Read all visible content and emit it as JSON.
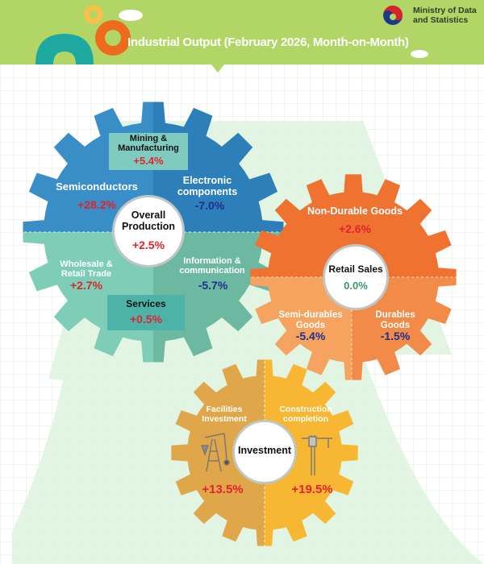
{
  "header": {
    "title": "Industrial Output (February 2026, Month-on-Month)",
    "ministry_line1": "Ministry of Data",
    "ministry_line2": "and Statistics",
    "background_color": "#b2d665"
  },
  "production": {
    "hub_title_1": "Overall",
    "hub_title_2": "Production",
    "hub_value": "+2.5%",
    "mining": {
      "label_1": "Mining &",
      "label_2": "Manufacturing",
      "value": "+5.4%"
    },
    "semiconductors": {
      "label": "Semiconductors",
      "value": "+28.2%"
    },
    "electronic": {
      "label_1": "Electronic",
      "label_2": "components",
      "value": "-7.0%"
    },
    "wholesale": {
      "label_1": "Wholesale &",
      "label_2": "Retail Trade",
      "value": "+2.7%"
    },
    "information": {
      "label_1": "Information &",
      "label_2": "communication",
      "value": "-5.7%"
    },
    "services": {
      "label": "Services",
      "value": "+0.5%"
    },
    "colors": {
      "blue_left": "#3a8ec7",
      "blue_right": "#2c7fb8",
      "teal_left": "#7ecdb7",
      "teal_right": "#6db8a0"
    }
  },
  "retail": {
    "hub_title": "Retail Sales",
    "hub_value": "0.0%",
    "non_durable": {
      "label": "Non-Durable Goods",
      "value": "+2.6%"
    },
    "semi_durable": {
      "label_1": "Semi-durables",
      "label_2": "Goods",
      "value": "-5.4%"
    },
    "durable": {
      "label_1": "Durables",
      "label_2": "Goods",
      "value": "-1.5%"
    },
    "colors": {
      "top": "#ef7230",
      "bottom_left": "#f5a35f",
      "bottom_right": "#f28a48"
    }
  },
  "investment": {
    "hub_title": "Investment",
    "facilities": {
      "label_1": "Facilities",
      "label_2": "Investment",
      "value": "+13.5%",
      "icon": "oil-pump-icon"
    },
    "construction": {
      "label_1": "Construction",
      "label_2": "completion",
      "value": "+19.5%",
      "icon": "crane-icon"
    },
    "colors": {
      "left": "#e0a64a",
      "right": "#f8b732"
    }
  }
}
